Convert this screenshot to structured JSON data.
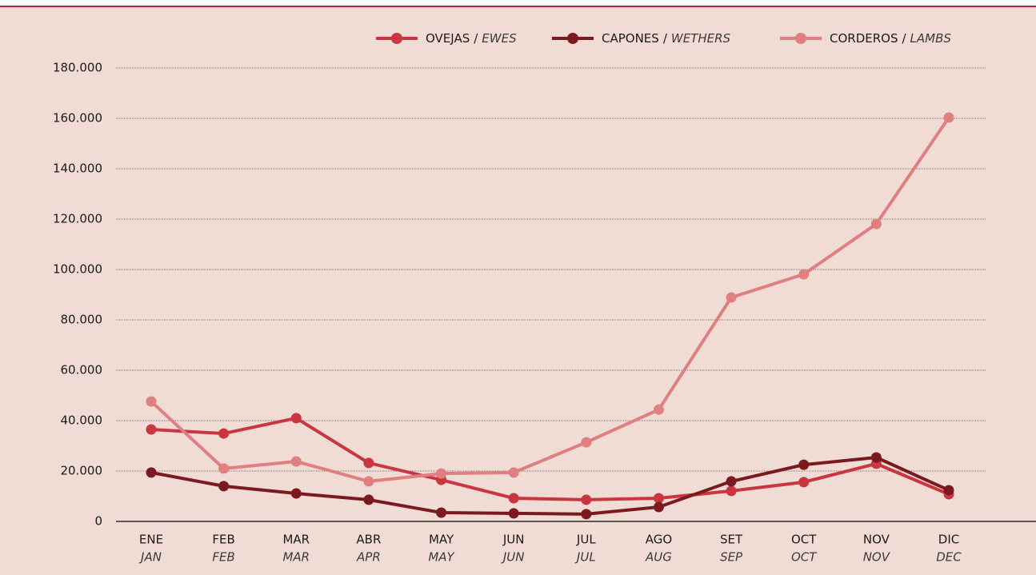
{
  "chart_data": {
    "type": "line",
    "categories": [
      "ENE",
      "FEB",
      "MAR",
      "ABR",
      "MAY",
      "JUN",
      "JUL",
      "AGO",
      "SET",
      "OCT",
      "NOV",
      "DIC"
    ],
    "category_translations": [
      "JAN",
      "FEB",
      "MAR",
      "APR",
      "MAY",
      "JUN",
      "JUL",
      "AUG",
      "SEP",
      "OCT",
      "NOV",
      "DEC"
    ],
    "legend_separator": "/",
    "series": [
      {
        "name": "OVEJAS",
        "translation": "EWES",
        "color": "#c9363f",
        "values": [
          36500,
          34900,
          41000,
          23200,
          16500,
          9200,
          8600,
          9200,
          12100,
          15600,
          22900,
          10800
        ]
      },
      {
        "name": "CAPONES",
        "translation": "WETHERS",
        "color": "#7a1a1e",
        "values": [
          19400,
          14000,
          11100,
          8600,
          3500,
          3200,
          2900,
          5700,
          15900,
          22500,
          25400,
          12400
        ]
      },
      {
        "name": "CORDEROS",
        "translation": "LAMBS",
        "color": "#e07f80",
        "values": [
          47600,
          21000,
          23800,
          15900,
          19000,
          19400,
          31400,
          44400,
          88900,
          98100,
          118100,
          160300
        ]
      }
    ],
    "ylim": [
      0,
      180000
    ],
    "yticks": [
      0,
      {
        "value": 20000,
        "label": "20.000"
      },
      {
        "value": 40000,
        "label": "40.000"
      },
      {
        "value": 60000,
        "label": "60.000"
      },
      {
        "value": 80000,
        "label": "80.000"
      },
      {
        "value": 100000,
        "label": "100.000"
      },
      {
        "value": 120000,
        "label": "120.000"
      },
      {
        "value": 140000,
        "label": "140.000"
      },
      {
        "value": 160000,
        "label": "160.000"
      },
      {
        "value": 180000,
        "label": "180.000"
      }
    ],
    "grid": true,
    "legend": "top-right"
  }
}
